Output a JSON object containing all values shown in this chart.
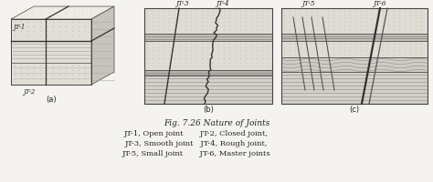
{
  "title": "Fig. 7.26 Nature of Joints",
  "caption_lines": [
    "JT-1, Open joint       JT-2, Closed joint,",
    "JT-3, Smooth joint   JT-4, Rough joint,",
    "JT-5, Small joint       JT-6, Master joints"
  ],
  "label_a": "(a)",
  "label_b": "(b)",
  "label_c": "(c)",
  "bg_color": "#f5f3ef",
  "fig_bg": "#f5f3ef",
  "line_color": "#444444",
  "text_color": "#222222",
  "dot_color": "#bbbbbb",
  "hline_color": "#aaaaaa",
  "layer_light": "#e8e4dc",
  "layer_mid": "#d8d4cc",
  "layer_dark": "#c8c4bc"
}
